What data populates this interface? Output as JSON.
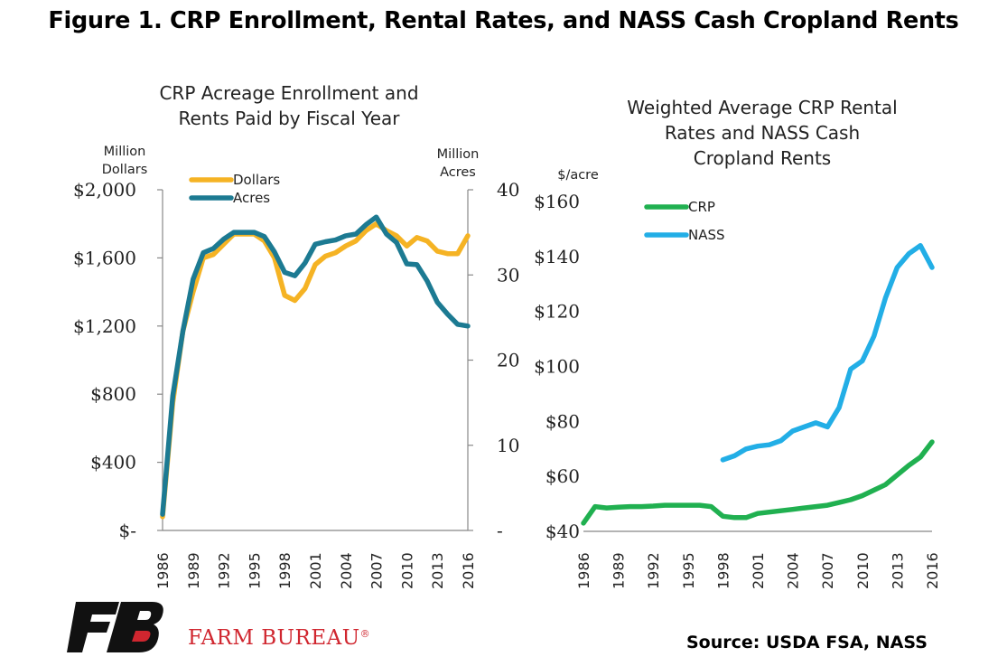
{
  "figure_title": "Figure 1. CRP Enrollment, Rental Rates, and NASS Cash Cropland Rents",
  "source": "Source: USDA FSA, NASS",
  "brand": {
    "name": "FARM BUREAU",
    "mark": "®",
    "logo_text": "FB"
  },
  "colors": {
    "dollars": "#F5B324",
    "acres": "#1C7A92",
    "crp": "#20B050",
    "nass": "#22AEE6",
    "brand_red": "#D0262F"
  },
  "chart_data": [
    {
      "type": "line",
      "title_lines": [
        "CRP Acreage Enrollment and",
        "Rents Paid by Fiscal Year"
      ],
      "y_left_unit_lines": [
        "Million",
        "Dollars"
      ],
      "y_right_unit_lines": [
        "Million",
        "Acres"
      ],
      "y_left_ticks": [
        "$2,000",
        "$1,600",
        "$1,200",
        "$800",
        "$400",
        "$-"
      ],
      "y_right_ticks": [
        "40",
        "30",
        "20",
        "10",
        "-"
      ],
      "ylim_left": [
        0,
        2000
      ],
      "ylim_right": [
        0,
        40
      ],
      "x_tick_labels": [
        "1986",
        "1989",
        "1992",
        "1995",
        "1998",
        "2001",
        "2004",
        "2007",
        "2010",
        "2013",
        "2016"
      ],
      "xlim": [
        1986,
        2016
      ],
      "grid": false,
      "legend_position": "top-left",
      "series": [
        {
          "name": "Dollars",
          "axis": "left",
          "x": [
            1986,
            1987,
            1988,
            1989,
            1990,
            1991,
            1992,
            1993,
            1994,
            1995,
            1996,
            1997,
            1998,
            1999,
            2000,
            2001,
            2002,
            2003,
            2004,
            2005,
            2006,
            2007,
            2008,
            2009,
            2010,
            2011,
            2012,
            2013,
            2014,
            2015,
            2016
          ],
          "values": [
            80,
            750,
            1170,
            1400,
            1600,
            1620,
            1680,
            1740,
            1740,
            1740,
            1700,
            1600,
            1380,
            1350,
            1420,
            1560,
            1610,
            1630,
            1670,
            1700,
            1760,
            1800,
            1760,
            1730,
            1670,
            1720,
            1700,
            1640,
            1625,
            1625,
            1730
          ]
        },
        {
          "name": "Acres",
          "axis": "right",
          "x": [
            1986,
            1987,
            1988,
            1989,
            1990,
            1991,
            1992,
            1993,
            1994,
            1995,
            1996,
            1997,
            1998,
            1999,
            2000,
            2001,
            2002,
            2003,
            2004,
            2005,
            2006,
            2007,
            2008,
            2009,
            2010,
            2011,
            2012,
            2013,
            2014,
            2015,
            2016
          ],
          "values": [
            1.9,
            15.8,
            23.4,
            29.5,
            32.6,
            33.1,
            34.2,
            35.0,
            35.0,
            35.0,
            34.5,
            32.7,
            30.3,
            29.9,
            31.4,
            33.6,
            33.9,
            34.1,
            34.6,
            34.8,
            35.9,
            36.8,
            34.8,
            33.8,
            31.3,
            31.2,
            29.3,
            26.8,
            25.4,
            24.2,
            24.0
          ]
        }
      ]
    },
    {
      "type": "line",
      "title_lines": [
        "Weighted Average CRP Rental",
        "Rates and NASS Cash",
        "Cropland Rents"
      ],
      "y_unit": "$/acre",
      "y_ticks": [
        "$160",
        "$140",
        "$120",
        "$100",
        "$80",
        "$60",
        "$40"
      ],
      "ylim": [
        40,
        160
      ],
      "x_tick_labels": [
        "1986",
        "1989",
        "1992",
        "1995",
        "1998",
        "2001",
        "2004",
        "2007",
        "2010",
        "2013",
        "2016"
      ],
      "xlim": [
        1986,
        2016
      ],
      "grid": false,
      "legend_position": "top-left",
      "series": [
        {
          "name": "CRP",
          "x": [
            1986,
            1987,
            1988,
            1989,
            1990,
            1991,
            1992,
            1993,
            1994,
            1995,
            1996,
            1997,
            1998,
            1999,
            2000,
            2001,
            2002,
            2003,
            2004,
            2005,
            2006,
            2007,
            2008,
            2009,
            2010,
            2011,
            2012,
            2013,
            2014,
            2015,
            2016
          ],
          "values": [
            43,
            49,
            48.5,
            48.8,
            49,
            49,
            49.2,
            49.5,
            49.5,
            49.5,
            49.5,
            49,
            45.5,
            45,
            45,
            46.5,
            47,
            47.5,
            48,
            48.5,
            49,
            49.5,
            50.5,
            51.5,
            53,
            55,
            57,
            60.5,
            64,
            67,
            72.5
          ]
        },
        {
          "name": "NASS",
          "x": [
            1998,
            1999,
            2000,
            2001,
            2002,
            2003,
            2004,
            2005,
            2006,
            2007,
            2008,
            2009,
            2010,
            2011,
            2012,
            2013,
            2014,
            2015,
            2016
          ],
          "values": [
            66,
            67.5,
            70,
            71,
            71.5,
            73,
            76.5,
            78,
            79.5,
            78,
            85,
            99,
            102,
            111,
            125,
            136,
            141,
            144,
            136
          ]
        }
      ]
    }
  ]
}
